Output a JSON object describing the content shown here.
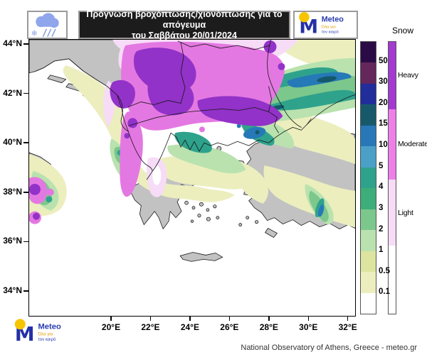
{
  "header": {
    "title_line1": "Πρόγνωση βροχόπτωσης/χιονόπτωσης για το απόγευμα",
    "title_line2": "του Σαββάτου 20/01/2024"
  },
  "logo": {
    "name": "Meteo",
    "tagline_line1": "Όλα για",
    "tagline_line2": "τον καιρό"
  },
  "icons": {
    "header_icon": "cloud-snowflake-rain-icon",
    "logo_icon": "meteo-m-with-yellow-sun-icon"
  },
  "axes": {
    "lat_labels": [
      "44°N",
      "42°N",
      "40°N",
      "38°N",
      "36°N",
      "34°N"
    ],
    "lon_labels": [
      "20°E",
      "22°E",
      "24°E",
      "26°E",
      "28°E",
      "30°E",
      "32°E"
    ]
  },
  "legend": {
    "snow_title": "Snow",
    "precip_values": [
      "50",
      "30",
      "20",
      "15",
      "10",
      "5",
      "4",
      "3",
      "2",
      "1",
      "0.5",
      "0.1"
    ],
    "precip_colors": [
      "#2B0B45",
      "#63275C",
      "#202D9B",
      "#17596B",
      "#2878B8",
      "#4BA0C8",
      "#2FA28C",
      "#3DAD79",
      "#7CC78C",
      "#B9E2AE",
      "#DDE49F",
      "#ECEEBE",
      "#FFFFFF"
    ],
    "snow_categories": [
      {
        "label": "Heavy",
        "color": "#A33BD1"
      },
      {
        "label": "Moderate",
        "color": "#EE7FE8"
      },
      {
        "label": "Light",
        "color": "#F6DCF6"
      },
      {
        "label": "",
        "color": "#FFFFFF"
      }
    ]
  },
  "map": {
    "sea_color": "#FFFFFF",
    "land_no_precip_color": "#C2C2C2"
  },
  "footer": {
    "attribution": "National Observatory of Athens, Greece - meteo.gr"
  }
}
